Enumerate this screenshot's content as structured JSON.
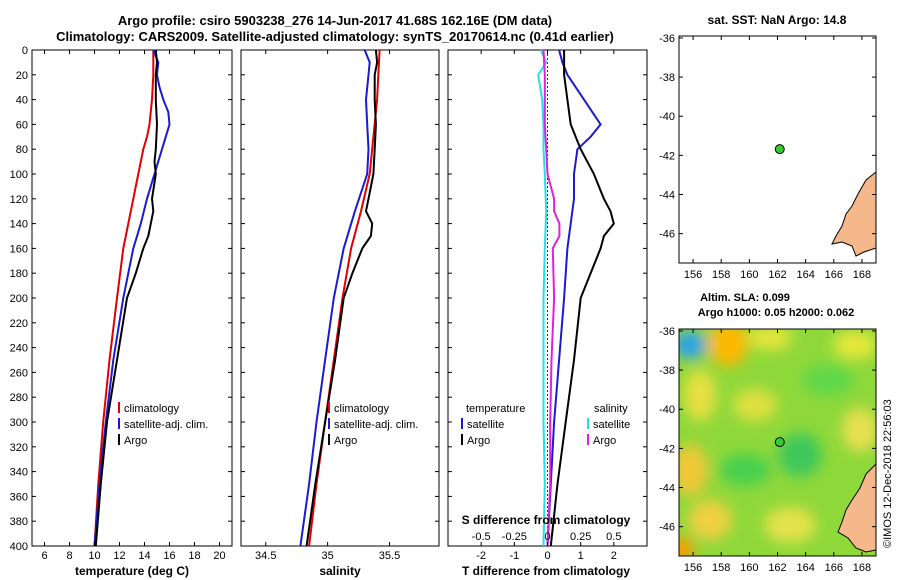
{
  "title": {
    "line1": "Argo profile: csiro 5903238_276 14-Jun-2017 41.68S 162.16E (DM data)",
    "line2": "Climatology: CARS2009. Satellite-adjusted climatology: synTS_20170614.nc (0.41d earlier)"
  },
  "watermark": "©IMOS 12-Dec-2018 22:56:03",
  "colors": {
    "climatology": "#e00000",
    "satellite": "#1a1ad0",
    "argo": "#000000",
    "salinity_satellite": "#22e0e8",
    "salinity_argo": "#e020e0",
    "land": "#f5b88a",
    "marker": "#33cc33"
  },
  "chart_data": [
    {
      "type": "line",
      "name": "temperature",
      "xlabel": "temperature (deg C)",
      "xlim": [
        5,
        21
      ],
      "xticks": [
        6,
        8,
        10,
        12,
        14,
        16,
        18,
        20
      ],
      "ylim": [
        400,
        0
      ],
      "yticks": [
        0,
        20,
        40,
        60,
        80,
        100,
        120,
        140,
        160,
        180,
        200,
        220,
        240,
        260,
        280,
        300,
        320,
        340,
        360,
        380,
        400
      ],
      "legend": [
        "climatology",
        "satellite-adj. clim.",
        "Argo"
      ],
      "series": [
        {
          "name": "climatology",
          "color": "#e00000",
          "depth": [
            0,
            20,
            40,
            60,
            70,
            80,
            100,
            130,
            160,
            200,
            250,
            300,
            350,
            400
          ],
          "values": [
            14.7,
            14.7,
            14.6,
            14.4,
            14.2,
            13.9,
            13.5,
            12.9,
            12.3,
            11.8,
            11.2,
            10.7,
            10.3,
            10.0
          ]
        },
        {
          "name": "satellite-adj. clim.",
          "color": "#1a1ad0",
          "depth": [
            0,
            10,
            20,
            30,
            40,
            50,
            60,
            80,
            100,
            120,
            140,
            160,
            200,
            250,
            300,
            350,
            400
          ],
          "values": [
            14.7,
            15.1,
            15.0,
            15.2,
            15.5,
            15.9,
            16.0,
            15.4,
            14.8,
            14.2,
            13.7,
            13.1,
            12.3,
            11.5,
            10.9,
            10.4,
            10.0
          ]
        },
        {
          "name": "Argo",
          "color": "#000000",
          "depth": [
            0,
            10,
            20,
            40,
            60,
            80,
            90,
            100,
            120,
            130,
            140,
            150,
            160,
            180,
            200,
            250,
            300,
            350,
            400
          ],
          "values": [
            14.9,
            15.0,
            14.9,
            14.9,
            15.0,
            14.9,
            14.8,
            14.9,
            14.6,
            14.7,
            14.5,
            14.3,
            13.9,
            13.3,
            12.6,
            11.8,
            11.0,
            10.5,
            10.1
          ]
        }
      ]
    },
    {
      "type": "line",
      "name": "salinity",
      "xlabel": "salinity",
      "xlim": [
        34.3,
        35.9
      ],
      "xticks": [
        34.5,
        35,
        35.5
      ],
      "xticklabels": [
        "34.5",
        "35",
        "35.5"
      ],
      "ylim": [
        400,
        0
      ],
      "legend": [
        "climatology",
        "satellite-adj. clim.",
        "Argo"
      ],
      "series": [
        {
          "name": "climatology",
          "color": "#e00000",
          "depth": [
            0,
            40,
            80,
            100,
            130,
            160,
            200,
            250,
            300,
            350,
            400
          ],
          "values": [
            35.42,
            35.4,
            35.36,
            35.34,
            35.27,
            35.19,
            35.12,
            35.05,
            34.98,
            34.91,
            34.85
          ]
        },
        {
          "name": "satellite-adj. clim.",
          "color": "#1a1ad0",
          "depth": [
            0,
            10,
            20,
            40,
            60,
            80,
            100,
            130,
            160,
            200,
            250,
            300,
            350,
            400
          ],
          "values": [
            35.3,
            35.34,
            35.33,
            35.31,
            35.32,
            35.33,
            35.32,
            35.22,
            35.13,
            35.05,
            34.98,
            34.91,
            34.85,
            34.78
          ]
        },
        {
          "name": "Argo",
          "color": "#000000",
          "depth": [
            0,
            10,
            20,
            40,
            60,
            80,
            100,
            120,
            130,
            140,
            150,
            160,
            180,
            200,
            250,
            300,
            350,
            400
          ],
          "values": [
            35.39,
            35.4,
            35.38,
            35.38,
            35.39,
            35.38,
            35.37,
            35.33,
            35.31,
            35.36,
            35.35,
            35.28,
            35.2,
            35.13,
            35.06,
            34.98,
            34.9,
            34.83
          ]
        }
      ]
    },
    {
      "type": "line",
      "name": "difference",
      "xlabel": "T difference from climatology",
      "xlabel2": "S difference from climatology",
      "xlim": [
        -3,
        3
      ],
      "xticks": [
        -2,
        -1,
        0,
        1,
        2
      ],
      "xticks2": [
        -0.5,
        -0.25,
        0,
        0.25,
        0.5
      ],
      "xticklabels2": [
        "-0.5",
        "-0.25",
        "0",
        "0.25",
        "0.5"
      ],
      "ylim": [
        400,
        0
      ],
      "legend_temperature": [
        "temperature",
        "satellite",
        "Argo"
      ],
      "legend_salinity": [
        "salinity",
        "satellite",
        "Argo"
      ],
      "series": [
        {
          "name": "T satellite",
          "color": "#1a1ad0",
          "axis": "T",
          "depth": [
            0,
            10,
            20,
            40,
            60,
            70,
            80,
            100,
            120,
            140,
            160,
            200,
            250,
            300,
            350,
            400
          ],
          "values": [
            0.35,
            0.45,
            0.6,
            1.1,
            1.6,
            1.3,
            0.9,
            0.8,
            0.8,
            0.7,
            0.6,
            0.5,
            0.35,
            0.2,
            0.1,
            0.0
          ]
        },
        {
          "name": "T Argo",
          "color": "#000000",
          "axis": "T",
          "depth": [
            0,
            20,
            40,
            60,
            80,
            100,
            120,
            130,
            140,
            150,
            160,
            180,
            200,
            250,
            300,
            350,
            400
          ],
          "values": [
            0.5,
            0.5,
            0.6,
            0.7,
            1.0,
            1.4,
            1.7,
            1.9,
            2.0,
            1.7,
            1.6,
            1.3,
            1.0,
            0.8,
            0.55,
            0.3,
            0.1
          ]
        },
        {
          "name": "S satellite",
          "color": "#22e0e8",
          "axis": "S",
          "depth": [
            0,
            10,
            20,
            40,
            60,
            80,
            100,
            130,
            160,
            200,
            250,
            300,
            350,
            400
          ],
          "values": [
            -0.05,
            -0.01,
            -0.07,
            -0.04,
            -0.03,
            -0.03,
            -0.02,
            -0.01,
            -0.02,
            -0.03,
            -0.03,
            -0.03,
            -0.02,
            -0.03
          ]
        },
        {
          "name": "S Argo",
          "color": "#e020e0",
          "axis": "S",
          "depth": [
            0,
            20,
            40,
            60,
            80,
            100,
            120,
            130,
            140,
            150,
            160,
            200,
            250,
            300,
            350,
            400
          ],
          "values": [
            -0.03,
            -0.02,
            -0.02,
            -0.02,
            -0.01,
            0.0,
            0.05,
            0.05,
            0.09,
            0.09,
            0.04,
            0.05,
            0.03,
            0.02,
            0.02,
            0.0
          ]
        }
      ]
    },
    {
      "type": "scatter",
      "name": "sst_map",
      "title": "sat. SST: NaN Argo: 14.8",
      "xlim": [
        155,
        169
      ],
      "xticks": [
        156,
        158,
        160,
        162,
        164,
        166,
        168
      ],
      "ylim": [
        -47.5,
        -35.9
      ],
      "yticks": [
        -36,
        -38,
        -40,
        -42,
        -44,
        -46
      ],
      "points": [
        {
          "lon": 162.16,
          "lat": -41.68
        }
      ]
    },
    {
      "type": "heatmap",
      "name": "sla_map",
      "title": "Altim. SLA: 0.099",
      "subtitle": "Argo h1000: 0.05 h2000: 0.062",
      "xlim": [
        155,
        169
      ],
      "xticks": [
        156,
        158,
        160,
        162,
        164,
        166,
        168
      ],
      "ylim": [
        -47.5,
        -35.9
      ],
      "yticks": [
        -36,
        -38,
        -40,
        -42,
        -44,
        -46
      ],
      "points": [
        {
          "lon": 162.16,
          "lat": -41.68
        }
      ]
    }
  ]
}
